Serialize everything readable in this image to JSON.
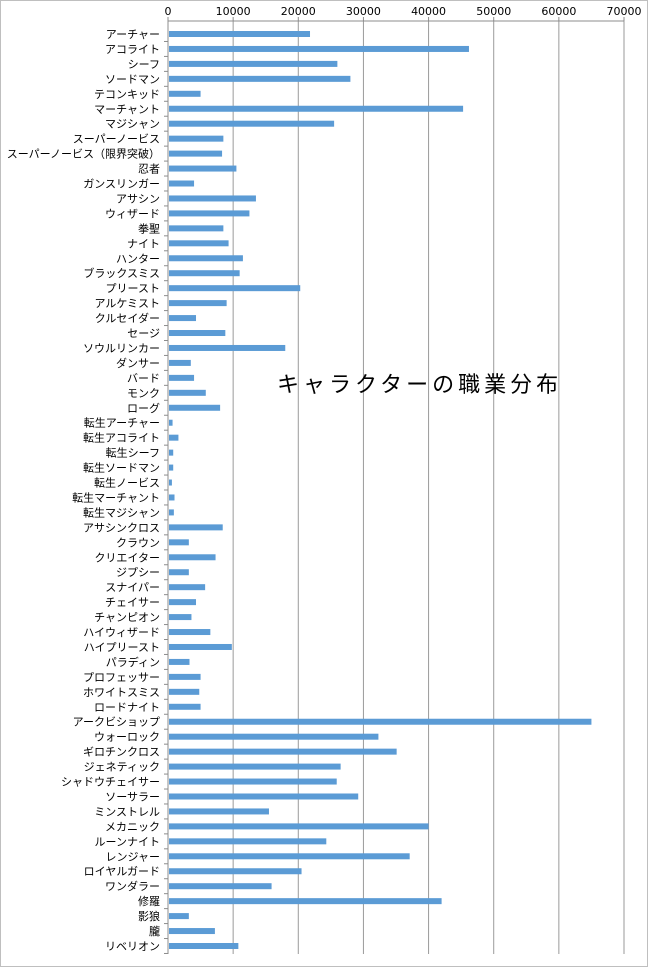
{
  "chart_data": {
    "type": "bar",
    "orientation": "horizontal",
    "title": "キャラクターの職業分布",
    "xlabel": "",
    "ylabel": "",
    "xlim": [
      0,
      70000
    ],
    "x_ticks": [
      "0",
      "10000",
      "20000",
      "30000",
      "40000",
      "50000",
      "60000",
      "70000"
    ],
    "x_axis_position": "top",
    "grid": "vertical",
    "bar_color": "#5b9bd5",
    "categories": [
      "アーチャー",
      "アコライト",
      "シーフ",
      "ソードマン",
      "テコンキッド",
      "マーチャント",
      "マジシャン",
      "スーパーノービス",
      "スーパーノービス（限界突破）",
      "忍者",
      "ガンスリンガー",
      "アサシン",
      "ウィザード",
      "拳聖",
      "ナイト",
      "ハンター",
      "ブラックスミス",
      "プリースト",
      "アルケミスト",
      "クルセイダー",
      "セージ",
      "ソウルリンカー",
      "ダンサー",
      "バード",
      "モンク",
      "ローグ",
      "転生アーチャー",
      "転生アコライト",
      "転生シーフ",
      "転生ソードマン",
      "転生ノービス",
      "転生マーチャント",
      "転生マジシャン",
      "アサシンクロス",
      "クラウン",
      "クリエイター",
      "ジプシー",
      "スナイパー",
      "チェイサー",
      "チャンピオン",
      "ハイウィザード",
      "ハイプリースト",
      "パラディン",
      "プロフェッサー",
      "ホワイトスミス",
      "ロードナイト",
      "アークビショップ",
      "ウォーロック",
      "ギロチンクロス",
      "ジェネティック",
      "シャドウチェイサー",
      "ソーサラー",
      "ミンストレル",
      "メカニック",
      "ルーンナイト",
      "レンジャー",
      "ロイヤルガード",
      "ワンダラー",
      "修羅",
      "影狼",
      "朧",
      "リベリオン"
    ],
    "values": [
      21800,
      46200,
      26000,
      28000,
      5000,
      45300,
      25500,
      8500,
      8300,
      10500,
      4000,
      13500,
      12500,
      8500,
      9300,
      11500,
      11000,
      20300,
      9000,
      4300,
      8800,
      18000,
      3500,
      4000,
      5800,
      8000,
      700,
      1600,
      800,
      800,
      600,
      1000,
      900,
      8400,
      3200,
      7300,
      3200,
      5700,
      4300,
      3600,
      6500,
      9800,
      3300,
      5000,
      4800,
      5000,
      65000,
      32300,
      35100,
      26500,
      25900,
      29200,
      15500,
      40000,
      24300,
      37100,
      20500,
      15900,
      42000,
      3200,
      7200,
      10800
    ]
  }
}
